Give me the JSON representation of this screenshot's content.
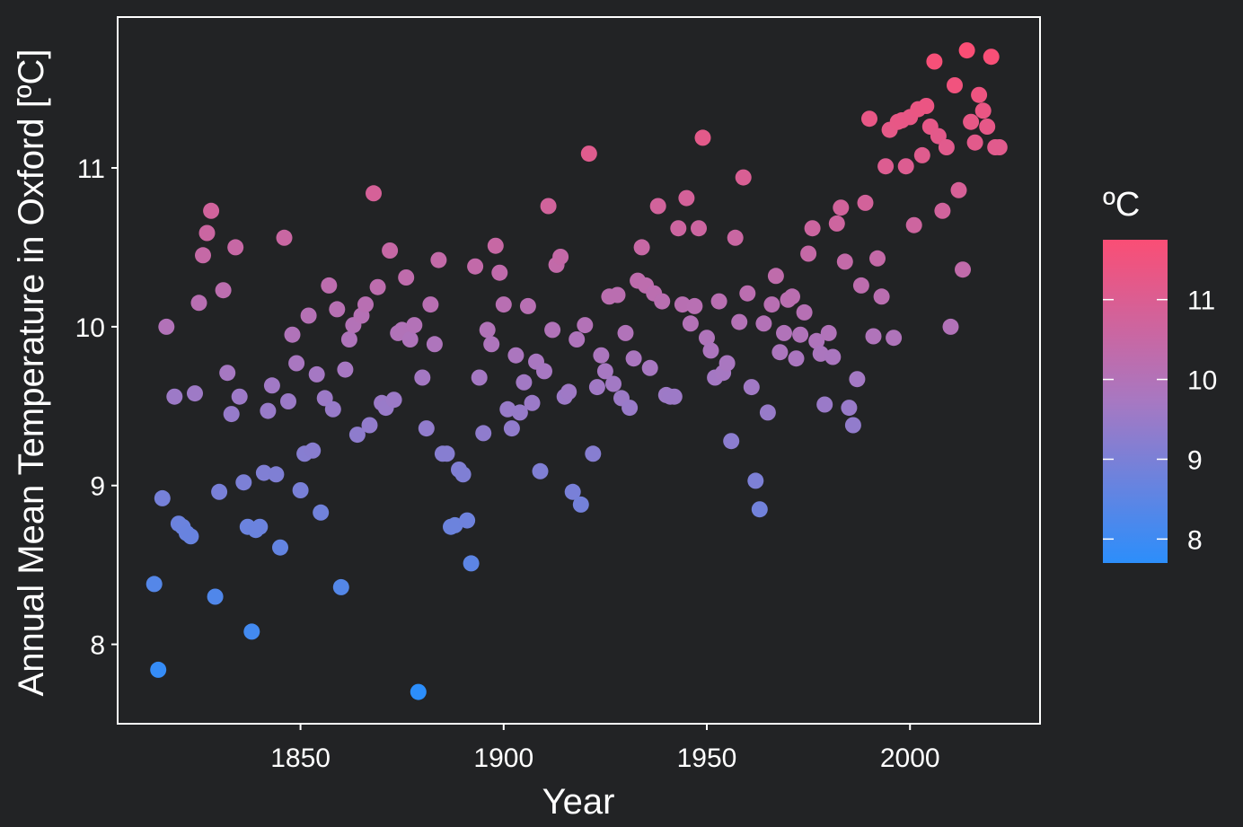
{
  "chart_data": {
    "type": "scatter",
    "title": "",
    "xlabel": "Year",
    "ylabel": "Annual Mean Temperature in Oxford [ºC]",
    "xlim": [
      1805,
      2032
    ],
    "ylim": [
      7.5,
      11.95
    ],
    "x_ticks": [
      1850,
      1900,
      1950,
      2000
    ],
    "y_ticks": [
      8,
      9,
      10,
      11
    ],
    "grid": false,
    "background": "#222325",
    "panel_border": "#ffffff",
    "point_color_low": "#2C8EFB",
    "point_color_high": "#FA4E75",
    "legend": {
      "title": "ºC",
      "placement": "right",
      "ticks": [
        8,
        9,
        10,
        11
      ],
      "range": [
        7.7,
        11.75
      ]
    },
    "points": [
      [
        1814,
        8.38
      ],
      [
        1815,
        7.84
      ],
      [
        1816,
        8.92
      ],
      [
        1817,
        10.0
      ],
      [
        1819,
        9.56
      ],
      [
        1820,
        8.76
      ],
      [
        1821,
        8.74
      ],
      [
        1822,
        8.7
      ],
      [
        1823,
        8.68
      ],
      [
        1824,
        9.58
      ],
      [
        1825,
        10.15
      ],
      [
        1826,
        10.45
      ],
      [
        1827,
        10.59
      ],
      [
        1828,
        10.73
      ],
      [
        1829,
        8.3
      ],
      [
        1830,
        8.96
      ],
      [
        1831,
        10.23
      ],
      [
        1832,
        9.71
      ],
      [
        1833,
        9.45
      ],
      [
        1834,
        10.5
      ],
      [
        1835,
        9.56
      ],
      [
        1836,
        9.02
      ],
      [
        1837,
        8.74
      ],
      [
        1838,
        8.08
      ],
      [
        1839,
        8.72
      ],
      [
        1840,
        8.74
      ],
      [
        1841,
        9.08
      ],
      [
        1842,
        9.47
      ],
      [
        1843,
        9.63
      ],
      [
        1844,
        9.07
      ],
      [
        1845,
        8.61
      ],
      [
        1846,
        10.56
      ],
      [
        1847,
        9.53
      ],
      [
        1848,
        9.95
      ],
      [
        1849,
        9.77
      ],
      [
        1850,
        8.97
      ],
      [
        1851,
        9.2
      ],
      [
        1852,
        10.07
      ],
      [
        1853,
        9.22
      ],
      [
        1854,
        9.7
      ],
      [
        1855,
        8.83
      ],
      [
        1856,
        9.55
      ],
      [
        1857,
        10.26
      ],
      [
        1858,
        9.48
      ],
      [
        1859,
        10.11
      ],
      [
        1860,
        8.36
      ],
      [
        1861,
        9.73
      ],
      [
        1862,
        9.92
      ],
      [
        1863,
        10.01
      ],
      [
        1864,
        9.32
      ],
      [
        1865,
        10.07
      ],
      [
        1866,
        10.14
      ],
      [
        1867,
        9.38
      ],
      [
        1868,
        10.84
      ],
      [
        1869,
        10.25
      ],
      [
        1870,
        9.52
      ],
      [
        1871,
        9.49
      ],
      [
        1872,
        10.48
      ],
      [
        1873,
        9.54
      ],
      [
        1874,
        9.96
      ],
      [
        1875,
        9.98
      ],
      [
        1876,
        10.31
      ],
      [
        1877,
        9.92
      ],
      [
        1878,
        10.01
      ],
      [
        1879,
        7.7
      ],
      [
        1880,
        9.68
      ],
      [
        1881,
        9.36
      ],
      [
        1882,
        10.14
      ],
      [
        1883,
        9.89
      ],
      [
        1884,
        10.42
      ],
      [
        1885,
        9.2
      ],
      [
        1886,
        9.2
      ],
      [
        1887,
        8.74
      ],
      [
        1888,
        8.75
      ],
      [
        1889,
        9.1
      ],
      [
        1890,
        9.07
      ],
      [
        1891,
        8.78
      ],
      [
        1892,
        8.51
      ],
      [
        1893,
        10.38
      ],
      [
        1894,
        9.68
      ],
      [
        1895,
        9.33
      ],
      [
        1896,
        9.98
      ],
      [
        1897,
        9.89
      ],
      [
        1898,
        10.51
      ],
      [
        1899,
        10.34
      ],
      [
        1900,
        10.14
      ],
      [
        1901,
        9.48
      ],
      [
        1902,
        9.36
      ],
      [
        1903,
        9.82
      ],
      [
        1904,
        9.46
      ],
      [
        1905,
        9.65
      ],
      [
        1906,
        10.13
      ],
      [
        1907,
        9.52
      ],
      [
        1908,
        9.78
      ],
      [
        1909,
        9.09
      ],
      [
        1910,
        9.72
      ],
      [
        1911,
        10.76
      ],
      [
        1912,
        9.98
      ],
      [
        1913,
        10.39
      ],
      [
        1914,
        10.44
      ],
      [
        1915,
        9.56
      ],
      [
        1916,
        9.59
      ],
      [
        1917,
        8.96
      ],
      [
        1918,
        9.92
      ],
      [
        1919,
        8.88
      ],
      [
        1920,
        10.01
      ],
      [
        1921,
        11.09
      ],
      [
        1922,
        9.2
      ],
      [
        1923,
        9.62
      ],
      [
        1924,
        9.82
      ],
      [
        1925,
        9.72
      ],
      [
        1926,
        10.19
      ],
      [
        1927,
        9.64
      ],
      [
        1928,
        10.2
      ],
      [
        1929,
        9.55
      ],
      [
        1930,
        9.96
      ],
      [
        1931,
        9.49
      ],
      [
        1932,
        9.8
      ],
      [
        1933,
        10.29
      ],
      [
        1934,
        10.5
      ],
      [
        1935,
        10.26
      ],
      [
        1936,
        9.74
      ],
      [
        1937,
        10.21
      ],
      [
        1938,
        10.76
      ],
      [
        1939,
        10.16
      ],
      [
        1940,
        9.57
      ],
      [
        1941,
        9.56
      ],
      [
        1942,
        9.56
      ],
      [
        1943,
        10.62
      ],
      [
        1944,
        10.14
      ],
      [
        1945,
        10.81
      ],
      [
        1946,
        10.02
      ],
      [
        1947,
        10.13
      ],
      [
        1948,
        10.62
      ],
      [
        1949,
        11.19
      ],
      [
        1950,
        9.93
      ],
      [
        1951,
        9.85
      ],
      [
        1952,
        9.68
      ],
      [
        1953,
        10.16
      ],
      [
        1954,
        9.71
      ],
      [
        1955,
        9.77
      ],
      [
        1956,
        9.28
      ],
      [
        1957,
        10.56
      ],
      [
        1958,
        10.03
      ],
      [
        1959,
        10.94
      ],
      [
        1960,
        10.21
      ],
      [
        1961,
        9.62
      ],
      [
        1962,
        9.03
      ],
      [
        1963,
        8.85
      ],
      [
        1964,
        10.02
      ],
      [
        1965,
        9.46
      ],
      [
        1966,
        10.14
      ],
      [
        1967,
        10.32
      ],
      [
        1968,
        9.84
      ],
      [
        1969,
        9.96
      ],
      [
        1970,
        10.17
      ],
      [
        1971,
        10.19
      ],
      [
        1972,
        9.8
      ],
      [
        1973,
        9.95
      ],
      [
        1974,
        10.09
      ],
      [
        1975,
        10.46
      ],
      [
        1976,
        10.62
      ],
      [
        1977,
        9.91
      ],
      [
        1978,
        9.83
      ],
      [
        1979,
        9.51
      ],
      [
        1980,
        9.96
      ],
      [
        1981,
        9.81
      ],
      [
        1982,
        10.65
      ],
      [
        1983,
        10.75
      ],
      [
        1984,
        10.41
      ],
      [
        1985,
        9.49
      ],
      [
        1986,
        9.38
      ],
      [
        1987,
        9.67
      ],
      [
        1988,
        10.26
      ],
      [
        1989,
        10.78
      ],
      [
        1990,
        11.31
      ],
      [
        1991,
        9.94
      ],
      [
        1992,
        10.43
      ],
      [
        1993,
        10.19
      ],
      [
        1994,
        11.01
      ],
      [
        1995,
        11.24
      ],
      [
        1996,
        9.93
      ],
      [
        1997,
        11.29
      ],
      [
        1998,
        11.3
      ],
      [
        1999,
        11.01
      ],
      [
        2000,
        11.32
      ],
      [
        2001,
        10.64
      ],
      [
        2002,
        11.37
      ],
      [
        2003,
        11.08
      ],
      [
        2004,
        11.39
      ],
      [
        2005,
        11.26
      ],
      [
        2006,
        11.67
      ],
      [
        2007,
        11.2
      ],
      [
        2008,
        10.73
      ],
      [
        2009,
        11.13
      ],
      [
        2010,
        10.0
      ],
      [
        2011,
        11.52
      ],
      [
        2012,
        10.86
      ],
      [
        2013,
        10.36
      ],
      [
        2014,
        11.74
      ],
      [
        2015,
        11.29
      ],
      [
        2016,
        11.16
      ],
      [
        2017,
        11.46
      ],
      [
        2018,
        11.36
      ],
      [
        2019,
        11.26
      ],
      [
        2020,
        11.7
      ],
      [
        2021,
        11.13
      ],
      [
        2022,
        11.13
      ]
    ]
  }
}
